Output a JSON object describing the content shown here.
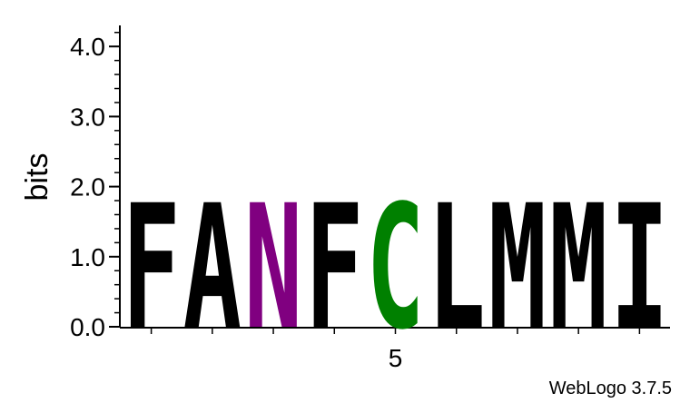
{
  "chart_data": {
    "type": "sequence-logo",
    "ylabel": "bits",
    "ylim": [
      0,
      4.3
    ],
    "y_ticks": [
      "0.0",
      "1.0",
      "2.0",
      "3.0",
      "4.0"
    ],
    "y_tick_values": [
      0,
      1,
      2,
      3,
      4
    ],
    "x_ticks": [
      "5"
    ],
    "x_tick_positions": [
      5
    ],
    "positions": [
      {
        "pos": 1,
        "letter": "F",
        "bits": 1.78,
        "color": "#000000"
      },
      {
        "pos": 2,
        "letter": "A",
        "bits": 1.78,
        "color": "#000000"
      },
      {
        "pos": 3,
        "letter": "N",
        "bits": 1.78,
        "color": "#800080"
      },
      {
        "pos": 4,
        "letter": "F",
        "bits": 1.78,
        "color": "#000000"
      },
      {
        "pos": 5,
        "letter": "C",
        "bits": 1.78,
        "color": "#008000"
      },
      {
        "pos": 6,
        "letter": "L",
        "bits": 1.78,
        "color": "#000000"
      },
      {
        "pos": 7,
        "letter": "M",
        "bits": 1.78,
        "color": "#000000"
      },
      {
        "pos": 8,
        "letter": "M",
        "bits": 1.78,
        "color": "#000000"
      },
      {
        "pos": 9,
        "letter": "I",
        "bits": 1.78,
        "color": "#000000"
      }
    ],
    "credit": "WebLogo 3.7.5"
  }
}
